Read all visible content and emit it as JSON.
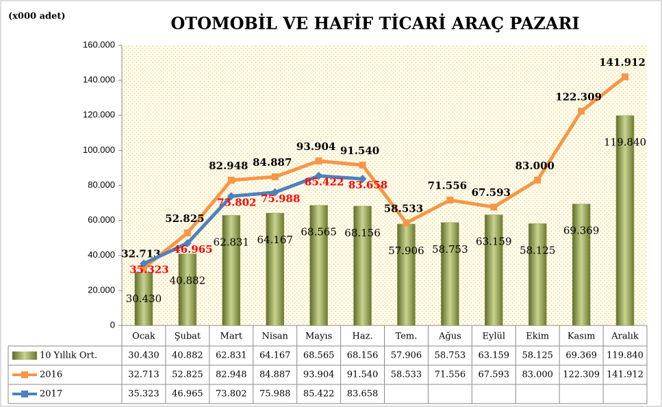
{
  "chart_data": {
    "type": "bar_line",
    "title": "OTOMOBİL VE HAFİF TİCARİ ARAÇ PAZARI",
    "unit_label": "(x000 adet)",
    "categories": [
      "Ocak",
      "Şubat",
      "Mart",
      "Nisan",
      "Mayıs",
      "Haz.",
      "Tem.",
      "Ağus",
      "Eylül",
      "Ekim",
      "Kasım",
      "Aralık"
    ],
    "ylim": [
      0,
      160000
    ],
    "yticks": [
      0,
      {
        "value": 20000,
        "label": "20.000"
      },
      {
        "value": 40000,
        "label": "40.000"
      },
      {
        "value": 60000,
        "label": "60.000"
      },
      {
        "value": 80000,
        "label": "80.000"
      },
      {
        "value": 100000,
        "label": "100.000"
      },
      {
        "value": 120000,
        "label": "120.000"
      },
      {
        "value": 140000,
        "label": "140.000"
      },
      {
        "value": 160000,
        "label": "160.000"
      }
    ],
    "series": [
      {
        "name": "10 Yıllık Ort.",
        "type": "bar",
        "color": "#8a9a4a",
        "label_color": "#000000",
        "values": [
          30430,
          40882,
          62831,
          64167,
          68565,
          68156,
          57906,
          58753,
          63159,
          58125,
          69369,
          119840
        ],
        "value_labels": [
          "30.430",
          "40.882",
          "62.831",
          "64.167",
          "68.565",
          "68.156",
          "57.906",
          "58.753",
          "63.159",
          "58.125",
          "69.369",
          "119.840"
        ]
      },
      {
        "name": "2016",
        "type": "line",
        "color": "#f79646",
        "label_color": "#000000",
        "values": [
          32713,
          52825,
          82948,
          84887,
          93904,
          91540,
          58533,
          71556,
          67593,
          83000,
          122309,
          141912
        ],
        "value_labels": [
          "32.713",
          "52.825",
          "82.948",
          "84.887",
          "93.904",
          "91.540",
          "58.533",
          "71.556",
          "67.593",
          "83.000",
          "122.309",
          "141.912"
        ]
      },
      {
        "name": "2017",
        "type": "line",
        "color": "#4f81bd",
        "label_color": "#ff0000",
        "values": [
          35323,
          46965,
          73802,
          75988,
          85422,
          83658,
          null,
          null,
          null,
          null,
          null,
          null
        ],
        "value_labels": [
          "35.323",
          "46.965",
          "73.802",
          "75.988",
          "85.422",
          "83.658",
          null,
          null,
          null,
          null,
          null,
          null
        ]
      }
    ]
  }
}
